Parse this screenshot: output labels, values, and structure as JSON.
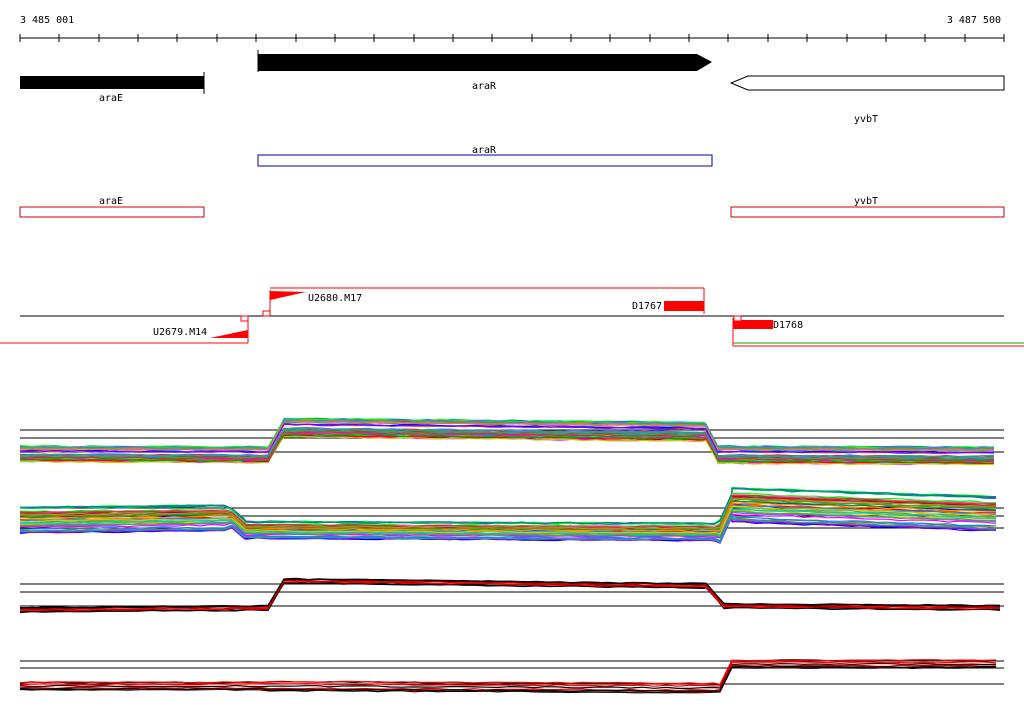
{
  "ruler": {
    "start_label": "3 485 001",
    "end_label": "3 487 500"
  },
  "genes": [
    {
      "name": "araE",
      "strand": "reverse",
      "style": "filled"
    },
    {
      "name": "araR",
      "strand": "forward",
      "style": "filled"
    },
    {
      "name": "yvbT",
      "strand": "reverse",
      "style": "outline"
    }
  ],
  "transcripts_blue": [
    {
      "name": "araR"
    }
  ],
  "transcripts_red": [
    {
      "name": "araE"
    },
    {
      "name": "yvbT"
    }
  ],
  "features": [
    {
      "name": "U2680.M17"
    },
    {
      "name": "U2679.M14"
    },
    {
      "name": "D1767"
    },
    {
      "name": "D1768"
    }
  ],
  "colors": {
    "gene_fill": "#000000",
    "transcript_blue": "#0000aa",
    "transcript_red": "#cc0000",
    "feature_red": "#ff0000",
    "track_green": "#00aa00"
  }
}
